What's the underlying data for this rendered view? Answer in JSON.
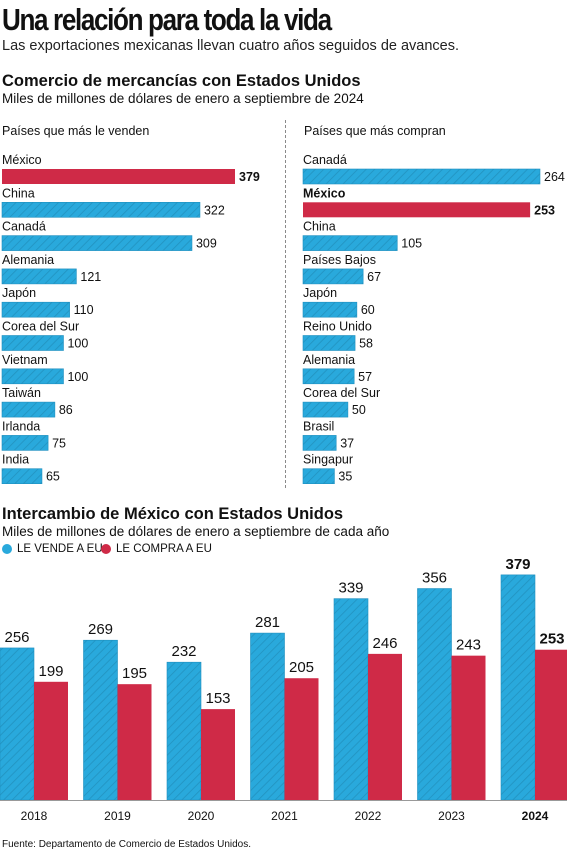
{
  "header": {
    "title": "Una relación para toda la vida",
    "subtitle": "Las exportaciones mexicanas llevan cuatro años seguidos de avances."
  },
  "section1": {
    "title": "Comercio de mercancías con Estados Unidos",
    "subtitle": "Miles de millones de dólares de enero a septiembre de 2024",
    "left_heading": "Países que más le venden",
    "right_heading": "Países que más compran"
  },
  "section2": {
    "title": "Intercambio de México con Estados Unidos",
    "subtitle": "Miles de millones de dólares de enero a septiembre de cada año"
  },
  "colors": {
    "blue": "#29a9dc",
    "red": "#cf2a47",
    "stripe": "#1d7fa8"
  },
  "chart_data": [
    {
      "type": "bar",
      "orientation": "horizontal",
      "title": "Países que más le venden",
      "categories": [
        "México",
        "China",
        "Canadá",
        "Alemania",
        "Japón",
        "Corea del Sur",
        "Vietnam",
        "Taiwán",
        "Irlanda",
        "India"
      ],
      "values": [
        379,
        322,
        309,
        121,
        110,
        100,
        100,
        86,
        75,
        65
      ],
      "highlight": [
        "México"
      ]
    },
    {
      "type": "bar",
      "orientation": "horizontal",
      "title": "Países que más compran",
      "categories": [
        "Canadá",
        "México",
        "China",
        "Países Bajos",
        "Japón",
        "Reino Unido",
        "Alemania",
        "Corea del Sur",
        "Brasil",
        "Singapur"
      ],
      "values": [
        264,
        253,
        105,
        67,
        60,
        58,
        57,
        50,
        37,
        35
      ],
      "highlight": [
        "México"
      ]
    },
    {
      "type": "bar",
      "title": "Intercambio de México con Estados Unidos",
      "categories": [
        "2018",
        "2019",
        "2020",
        "2021",
        "2022",
        "2023",
        "2024"
      ],
      "series": [
        {
          "name": "LE VENDE A EU",
          "values": [
            256,
            269,
            232,
            281,
            339,
            356,
            379
          ]
        },
        {
          "name": "LE COMPRA A EU",
          "values": [
            199,
            195,
            153,
            205,
            246,
            243,
            253
          ]
        }
      ],
      "highlight_category": "2024",
      "legend": "top-left"
    }
  ],
  "source": "Fuente: Departamento de Comercio de Estados Unidos."
}
